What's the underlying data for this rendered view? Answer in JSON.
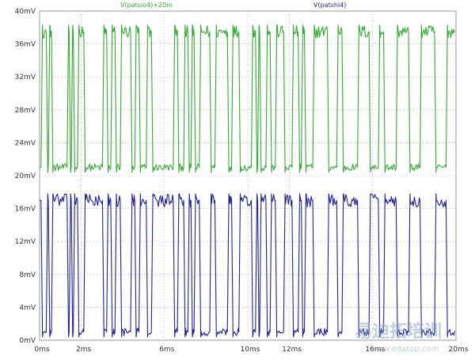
{
  "chart_data": {
    "type": "line",
    "xlim": [
      0,
      20
    ],
    "ylim": [
      0,
      40
    ],
    "y_unit": "mV",
    "grid": true,
    "x_ticks": [
      {
        "value": 0,
        "label": "0ms"
      },
      {
        "value": 2,
        "label": "2ms"
      },
      {
        "value": 6,
        "label": "6ms"
      },
      {
        "value": 10,
        "label": "10ms"
      },
      {
        "value": 12,
        "label": "12ms"
      },
      {
        "value": 16,
        "label": "16ms"
      },
      {
        "value": 20,
        "label": "20ms"
      }
    ],
    "y_ticks": [
      {
        "value": 0,
        "label": "0mV"
      },
      {
        "value": 4,
        "label": "4mV"
      },
      {
        "value": 8,
        "label": "8mV"
      },
      {
        "value": 12,
        "label": "12mV"
      },
      {
        "value": 16,
        "label": "16mV"
      },
      {
        "value": 20,
        "label": "20mV"
      },
      {
        "value": 24,
        "label": "24mV"
      },
      {
        "value": 28,
        "label": "28mV"
      },
      {
        "value": 32,
        "label": "32mV"
      },
      {
        "value": 36,
        "label": "36mV"
      },
      {
        "value": 40,
        "label": "40mV"
      }
    ],
    "series": [
      {
        "name": "V(patsio4)+20m",
        "color": "#33aa33",
        "low": 21,
        "high": 37.5,
        "transitions": [
          0.1,
          0.35,
          0.45,
          0.6,
          1.35,
          1.45,
          1.55,
          1.65,
          1.85,
          2.15,
          3.05,
          3.25,
          3.45,
          3.65,
          3.9,
          4.4,
          4.6,
          4.8,
          5.15,
          5.4,
          6.45,
          6.65,
          6.95,
          7.15,
          7.3,
          7.45,
          7.7,
          8.2,
          8.45,
          9.05,
          9.25,
          9.6,
          10.2,
          10.4,
          10.5,
          10.6,
          10.9,
          11.1,
          11.35,
          11.75,
          12.15,
          12.45,
          12.6,
          12.75,
          13.15,
          13.85,
          14.3,
          14.55,
          15.3,
          15.85,
          16.3,
          16.55,
          17.15,
          17.75,
          18.3,
          19.0,
          19.55
        ],
        "start_high": false
      },
      {
        "name": "V(patshi4)",
        "color": "#22229a",
        "low": 1,
        "high": 17,
        "transitions": [
          0.1,
          0.35,
          0.45,
          0.6,
          1.35,
          1.45,
          1.55,
          1.65,
          1.85,
          2.15,
          3.05,
          3.25,
          3.45,
          3.65,
          3.9,
          4.4,
          4.6,
          4.8,
          5.15,
          5.4,
          6.45,
          6.65,
          6.95,
          7.15,
          7.3,
          7.45,
          7.7,
          8.2,
          8.45,
          9.05,
          9.25,
          9.6,
          10.2,
          10.4,
          10.5,
          10.6,
          10.9,
          11.1,
          11.35,
          11.75,
          12.15,
          12.45,
          12.6,
          12.75,
          13.15,
          13.85,
          14.3,
          14.55,
          15.3,
          15.85,
          16.3,
          16.55,
          17.15,
          17.75,
          18.3,
          19.0,
          19.55
        ],
        "start_high": true
      }
    ]
  },
  "watermark": {
    "text": "易迪拓培训",
    "url": "www.edatop.com"
  }
}
